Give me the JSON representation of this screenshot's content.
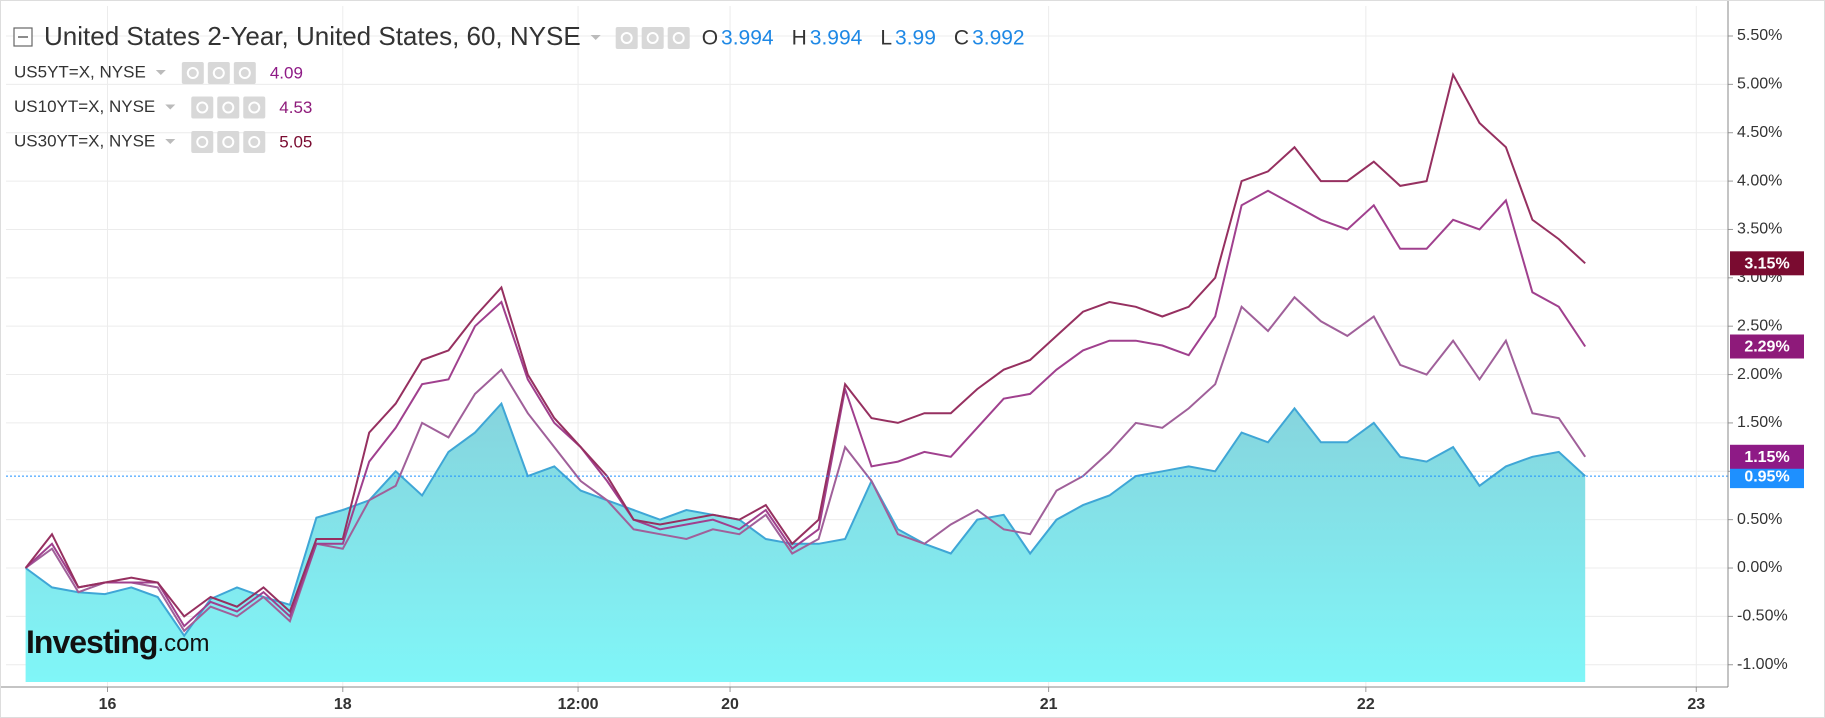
{
  "chart_data": {
    "type": "line",
    "title": "United States 2-Year, United States, 60, NYSE",
    "ohlc": [
      {
        "label": "O",
        "value": 3.994
      },
      {
        "label": "H",
        "value": 3.994
      },
      {
        "label": "L",
        "value": 3.99
      },
      {
        "label": "C",
        "value": 3.992
      }
    ],
    "watermark": {
      "brand": "Investing",
      "suffix": ".com"
    },
    "x": [
      0,
      1,
      2,
      3,
      4,
      5,
      6,
      7,
      8,
      9,
      10,
      11,
      12,
      13,
      14,
      15,
      16,
      17,
      18,
      19,
      20,
      21,
      22,
      23,
      24,
      25,
      26,
      27,
      28,
      29,
      30,
      31,
      32,
      33,
      34,
      35,
      36,
      37,
      38,
      39,
      40,
      41,
      42,
      43,
      44,
      45,
      46,
      47,
      48,
      49,
      50,
      51,
      52,
      53,
      54,
      55,
      56,
      57,
      58,
      59
    ],
    "xlim": [
      -0.74,
      64.4
    ],
    "xticks": [
      {
        "value": 3.1,
        "label": "16"
      },
      {
        "value": 12,
        "label": "18"
      },
      {
        "value": 20.9,
        "label": "12:00"
      },
      {
        "value": 26.65,
        "label": "20"
      },
      {
        "value": 38.7,
        "label": "21"
      },
      {
        "value": 50.7,
        "label": "22"
      },
      {
        "value": 63.2,
        "label": "23"
      }
    ],
    "ylim": [
      -1.23,
      5.81
    ],
    "yticks": [
      {
        "value": -1,
        "label": "-1.00%"
      },
      {
        "value": -0.5,
        "label": "-0.50%"
      },
      {
        "value": 0,
        "label": "0.00%"
      },
      {
        "value": 0.5,
        "label": "0.50%"
      },
      {
        "value": 1,
        "label": "1.00%"
      },
      {
        "value": 1.5,
        "label": "1.50%"
      },
      {
        "value": 2,
        "label": "2.00%"
      },
      {
        "value": 2.5,
        "label": "2.50%"
      },
      {
        "value": 3,
        "label": "3.00%"
      },
      {
        "value": 3.5,
        "label": "3.50%"
      },
      {
        "value": 4,
        "label": "4.00%"
      },
      {
        "value": 4.5,
        "label": "4.50%"
      },
      {
        "value": 5,
        "label": "5.00%"
      },
      {
        "value": 5.5,
        "label": "5.50%"
      }
    ],
    "grid": true,
    "series": [
      {
        "style": "area",
        "color": "#3fa6d6",
        "badge_color": "#1e90ff",
        "last_label": "0.95%",
        "values": [
          0,
          -0.2,
          -0.25,
          -0.27,
          -0.2,
          -0.3,
          -0.7,
          -0.32,
          -0.2,
          -0.3,
          -0.38,
          0.52,
          0.6,
          0.7,
          1.0,
          0.75,
          1.2,
          1.4,
          1.7,
          0.95,
          1.05,
          0.8,
          0.7,
          0.6,
          0.5,
          0.6,
          0.55,
          0.5,
          0.3,
          0.25,
          0.25,
          0.3,
          0.9,
          0.4,
          0.25,
          0.15,
          0.5,
          0.55,
          0.15,
          0.5,
          0.65,
          0.75,
          0.95,
          1.0,
          1.05,
          1.0,
          1.4,
          1.3,
          1.65,
          1.3,
          1.3,
          1.5,
          1.15,
          1.1,
          1.25,
          0.85,
          1.05,
          1.15,
          1.2,
          0.95
        ]
      },
      {
        "style": "line",
        "name": "US5YT=X, NYSE",
        "color": "#a0609a",
        "badge_color": "#8e1a86",
        "legend_value": 4.09,
        "last_label": "1.15%",
        "values": [
          0,
          0.2,
          -0.25,
          -0.15,
          -0.15,
          -0.2,
          -0.65,
          -0.4,
          -0.5,
          -0.3,
          -0.55,
          0.25,
          0.2,
          0.7,
          0.85,
          1.5,
          1.35,
          1.8,
          2.05,
          1.6,
          1.25,
          0.9,
          0.7,
          0.4,
          0.35,
          0.3,
          0.4,
          0.35,
          0.55,
          0.15,
          0.3,
          1.25,
          0.9,
          0.35,
          0.25,
          0.45,
          0.6,
          0.4,
          0.35,
          0.8,
          0.95,
          1.2,
          1.5,
          1.45,
          1.65,
          1.9,
          2.7,
          2.45,
          2.8,
          2.55,
          2.4,
          2.6,
          2.1,
          2.0,
          2.35,
          1.95,
          2.35,
          1.6,
          1.55,
          1.15
        ]
      },
      {
        "style": "line",
        "name": "US10YT=X, NYSE",
        "color": "#a0408e",
        "badge_color": "#8e1a7a",
        "legend_value": 4.53,
        "last_label": "2.29%",
        "values": [
          0,
          0.25,
          -0.2,
          -0.15,
          -0.15,
          -0.15,
          -0.6,
          -0.35,
          -0.45,
          -0.25,
          -0.5,
          0.25,
          0.25,
          1.1,
          1.45,
          1.9,
          1.95,
          2.5,
          2.75,
          1.95,
          1.5,
          1.25,
          0.9,
          0.5,
          0.4,
          0.45,
          0.5,
          0.4,
          0.6,
          0.2,
          0.4,
          1.85,
          1.05,
          1.1,
          1.2,
          1.15,
          1.45,
          1.75,
          1.8,
          2.05,
          2.25,
          2.35,
          2.35,
          2.3,
          2.2,
          2.6,
          3.75,
          3.9,
          3.75,
          3.6,
          3.5,
          3.75,
          3.3,
          3.3,
          3.6,
          3.5,
          3.8,
          2.85,
          2.7,
          2.29
        ]
      },
      {
        "style": "line",
        "name": "US30YT=X, NYSE",
        "color": "#963060",
        "badge_color": "#7a0b30",
        "legend_value": 5.05,
        "last_label": "3.15%",
        "values": [
          0,
          0.35,
          -0.2,
          -0.15,
          -0.1,
          -0.15,
          -0.5,
          -0.3,
          -0.4,
          -0.2,
          -0.45,
          0.3,
          0.3,
          1.4,
          1.7,
          2.15,
          2.25,
          2.6,
          2.9,
          2.0,
          1.55,
          1.25,
          0.95,
          0.5,
          0.45,
          0.5,
          0.55,
          0.5,
          0.65,
          0.25,
          0.5,
          1.9,
          1.55,
          1.5,
          1.6,
          1.6,
          1.85,
          2.05,
          2.15,
          2.4,
          2.65,
          2.75,
          2.7,
          2.6,
          2.7,
          3.0,
          4.0,
          4.1,
          4.35,
          4.0,
          4.0,
          4.2,
          3.95,
          4.0,
          5.1,
          4.6,
          4.35,
          3.6,
          3.4,
          3.15
        ]
      }
    ]
  }
}
